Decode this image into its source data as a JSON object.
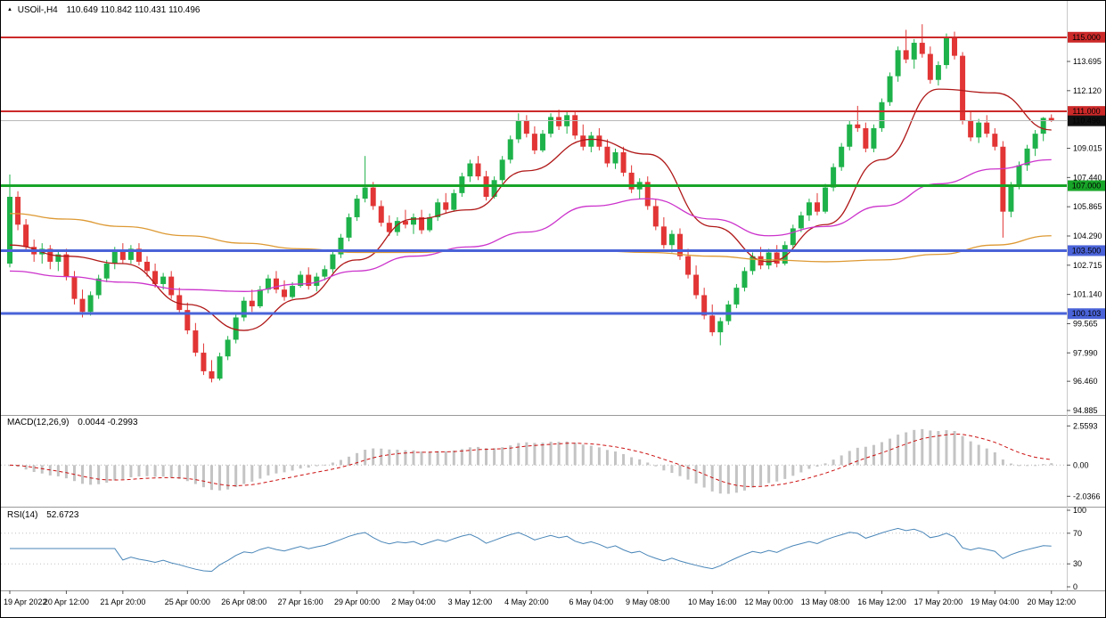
{
  "title_bar": {
    "marker": "▲",
    "symbol_timeframe": "USOil-,H4",
    "ohlc": "110.649 110.842 110.431 110.496"
  },
  "macd_panel": {
    "label": "MACD(12,26,9)",
    "values": "0.0044 -0.2993"
  },
  "rsi_panel": {
    "label": "RSI(14)",
    "value": "52.6723"
  },
  "chart_data": {
    "type": "candlestick",
    "symbol": "USOil-",
    "timeframe": "H4",
    "last_ohlc": {
      "open": 110.649,
      "high": 110.842,
      "low": 110.431,
      "close": 110.496
    },
    "price_axis_ticks": [
      113.695,
      112.12,
      109.015,
      107.44,
      105.865,
      104.29,
      102.715,
      101.14,
      99.565,
      97.99,
      96.46,
      94.885
    ],
    "hlines": [
      {
        "price": 115.0,
        "label": "115.000",
        "color": "#cc2929",
        "width": 2
      },
      {
        "price": 111.0,
        "label": "111.000",
        "color": "#cc2929",
        "width": 2
      },
      {
        "price": 107.0,
        "label": "107.000",
        "color": "#18a428",
        "width": 3
      },
      {
        "price": 103.5,
        "label": "103.500",
        "color": "#4a63d8",
        "width": 3
      },
      {
        "price": 100.103,
        "label": "100.103",
        "color": "#4a63d8",
        "width": 3
      }
    ],
    "current_price": {
      "price": 110.496,
      "label": "110.496",
      "badge_color": "#111111",
      "line_color": "#b8b8b8"
    },
    "time_labels": [
      {
        "text": "19 Apr 2022",
        "bar": 0
      },
      {
        "text": "20 Apr 12:00",
        "bar": 7
      },
      {
        "text": "21 Apr 20:00",
        "bar": 14
      },
      {
        "text": "25 Apr 00:00",
        "bar": 22
      },
      {
        "text": "26 Apr 08:00",
        "bar": 29
      },
      {
        "text": "27 Apr 16:00",
        "bar": 36
      },
      {
        "text": "29 Apr 00:00",
        "bar": 43
      },
      {
        "text": "2 May 04:00",
        "bar": 50
      },
      {
        "text": "3 May 12:00",
        "bar": 57
      },
      {
        "text": "4 May 20:00",
        "bar": 64
      },
      {
        "text": "6 May 04:00",
        "bar": 72
      },
      {
        "text": "9 May 08:00",
        "bar": 79
      },
      {
        "text": "10 May 16:00",
        "bar": 87
      },
      {
        "text": "12 May 00:00",
        "bar": 94
      },
      {
        "text": "13 May 08:00",
        "bar": 101
      },
      {
        "text": "16 May 12:00",
        "bar": 108
      },
      {
        "text": "17 May 20:00",
        "bar": 115
      },
      {
        "text": "19 May 04:00",
        "bar": 122
      },
      {
        "text": "20 May 12:00",
        "bar": 129
      }
    ],
    "candles": [
      [
        102.8,
        107.6,
        102.6,
        106.4
      ],
      [
        106.4,
        106.7,
        104.6,
        104.9
      ],
      [
        104.9,
        105.2,
        103.5,
        103.7
      ],
      [
        103.7,
        104.1,
        102.9,
        103.3
      ],
      [
        103.3,
        103.9,
        102.8,
        103.6
      ],
      [
        103.6,
        103.8,
        102.5,
        102.9
      ],
      [
        102.9,
        103.5,
        102.4,
        103.3
      ],
      [
        103.3,
        103.6,
        101.9,
        102.1
      ],
      [
        102.1,
        102.4,
        100.6,
        100.9
      ],
      [
        100.9,
        101.4,
        99.9,
        100.2
      ],
      [
        100.2,
        101.3,
        100.0,
        101.1
      ],
      [
        101.1,
        102.2,
        100.9,
        102.0
      ],
      [
        102.0,
        103.0,
        101.8,
        102.8
      ],
      [
        102.8,
        103.7,
        102.5,
        103.5
      ],
      [
        103.5,
        103.9,
        102.8,
        103.0
      ],
      [
        103.0,
        103.8,
        102.8,
        103.6
      ],
      [
        103.6,
        103.9,
        102.7,
        102.9
      ],
      [
        102.9,
        103.2,
        102.1,
        102.4
      ],
      [
        102.4,
        102.8,
        101.5,
        101.7
      ],
      [
        101.7,
        102.3,
        101.4,
        102.1
      ],
      [
        102.1,
        102.4,
        100.9,
        101.1
      ],
      [
        101.1,
        101.5,
        100.1,
        100.3
      ],
      [
        100.3,
        100.7,
        99.0,
        99.2
      ],
      [
        99.2,
        99.6,
        97.8,
        98.0
      ],
      [
        98.0,
        98.5,
        96.8,
        97.0
      ],
      [
        97.0,
        97.6,
        96.4,
        96.6
      ],
      [
        96.6,
        98.0,
        96.5,
        97.8
      ],
      [
        97.8,
        98.9,
        97.6,
        98.7
      ],
      [
        98.7,
        100.1,
        98.5,
        99.9
      ],
      [
        99.9,
        101.0,
        99.7,
        100.8
      ],
      [
        100.8,
        101.4,
        100.2,
        100.5
      ],
      [
        100.5,
        101.6,
        100.4,
        101.4
      ],
      [
        101.4,
        102.2,
        101.2,
        102.0
      ],
      [
        102.0,
        102.4,
        101.2,
        101.4
      ],
      [
        101.4,
        101.9,
        100.8,
        101.0
      ],
      [
        101.0,
        101.8,
        100.9,
        101.6
      ],
      [
        101.6,
        102.4,
        101.5,
        102.2
      ],
      [
        102.2,
        102.6,
        101.4,
        101.6
      ],
      [
        101.6,
        102.3,
        101.3,
        102.1
      ],
      [
        102.1,
        102.7,
        101.9,
        102.5
      ],
      [
        102.5,
        103.5,
        102.3,
        103.3
      ],
      [
        103.3,
        104.4,
        103.1,
        104.2
      ],
      [
        104.2,
        105.5,
        104.0,
        105.3
      ],
      [
        105.3,
        106.5,
        105.1,
        106.3
      ],
      [
        106.3,
        108.6,
        106.1,
        106.9
      ],
      [
        106.9,
        107.2,
        105.7,
        105.9
      ],
      [
        105.9,
        106.2,
        104.8,
        105.0
      ],
      [
        105.0,
        105.4,
        104.3,
        104.5
      ],
      [
        104.5,
        105.3,
        104.3,
        105.1
      ],
      [
        105.1,
        105.7,
        104.7,
        104.9
      ],
      [
        104.9,
        105.5,
        104.4,
        105.3
      ],
      [
        105.3,
        105.7,
        104.4,
        104.6
      ],
      [
        104.6,
        105.5,
        104.5,
        105.3
      ],
      [
        105.3,
        106.3,
        105.1,
        106.1
      ],
      [
        106.1,
        106.6,
        105.5,
        105.7
      ],
      [
        105.7,
        106.8,
        105.6,
        106.6
      ],
      [
        106.6,
        107.7,
        106.4,
        107.5
      ],
      [
        107.5,
        108.4,
        107.2,
        108.2
      ],
      [
        108.2,
        108.6,
        107.3,
        107.5
      ],
      [
        107.5,
        107.8,
        106.2,
        106.4
      ],
      [
        106.4,
        107.5,
        106.3,
        107.3
      ],
      [
        107.3,
        108.6,
        107.1,
        108.4
      ],
      [
        108.4,
        109.7,
        108.2,
        109.5
      ],
      [
        109.5,
        110.9,
        109.3,
        110.5
      ],
      [
        110.5,
        110.8,
        109.6,
        109.8
      ],
      [
        109.8,
        110.2,
        108.7,
        108.9
      ],
      [
        108.9,
        110.0,
        108.8,
        109.8
      ],
      [
        109.8,
        110.9,
        109.6,
        110.7
      ],
      [
        110.7,
        111.1,
        110.0,
        110.2
      ],
      [
        110.2,
        111.0,
        109.8,
        110.8
      ],
      [
        110.8,
        111.0,
        109.5,
        109.7
      ],
      [
        109.7,
        110.3,
        108.9,
        109.1
      ],
      [
        109.1,
        109.9,
        108.8,
        109.7
      ],
      [
        109.7,
        110.1,
        108.9,
        109.1
      ],
      [
        109.1,
        109.5,
        108.0,
        108.2
      ],
      [
        108.2,
        109.0,
        107.9,
        108.8
      ],
      [
        108.8,
        109.1,
        107.5,
        107.7
      ],
      [
        107.7,
        108.1,
        106.6,
        106.8
      ],
      [
        106.8,
        107.4,
        106.3,
        107.2
      ],
      [
        107.2,
        107.5,
        105.7,
        105.9
      ],
      [
        105.9,
        106.3,
        104.6,
        104.8
      ],
      [
        104.8,
        105.3,
        103.6,
        103.8
      ],
      [
        103.8,
        104.6,
        103.4,
        104.4
      ],
      [
        104.4,
        104.7,
        103.0,
        103.2
      ],
      [
        103.2,
        103.6,
        102.0,
        102.2
      ],
      [
        102.2,
        102.7,
        100.9,
        101.1
      ],
      [
        101.1,
        101.5,
        99.8,
        100.0
      ],
      [
        100.0,
        100.6,
        98.9,
        99.1
      ],
      [
        99.1,
        99.9,
        98.4,
        99.7
      ],
      [
        99.7,
        100.8,
        99.5,
        100.6
      ],
      [
        100.6,
        101.7,
        100.4,
        101.5
      ],
      [
        101.5,
        102.6,
        101.3,
        102.4
      ],
      [
        102.4,
        103.4,
        102.2,
        103.2
      ],
      [
        103.2,
        103.7,
        102.5,
        102.7
      ],
      [
        102.7,
        103.6,
        102.5,
        103.4
      ],
      [
        103.4,
        103.8,
        102.6,
        102.8
      ],
      [
        102.8,
        104.0,
        102.7,
        103.8
      ],
      [
        103.8,
        104.9,
        103.6,
        104.7
      ],
      [
        104.7,
        105.6,
        104.5,
        105.4
      ],
      [
        105.4,
        106.3,
        105.1,
        106.1
      ],
      [
        106.1,
        106.6,
        105.4,
        105.6
      ],
      [
        105.6,
        107.1,
        105.5,
        106.9
      ],
      [
        106.9,
        108.2,
        106.7,
        108.0
      ],
      [
        108.0,
        109.3,
        107.8,
        109.1
      ],
      [
        109.1,
        110.5,
        108.9,
        110.3
      ],
      [
        110.3,
        111.3,
        109.9,
        110.1
      ],
      [
        110.1,
        110.4,
        108.8,
        109.0
      ],
      [
        109.0,
        110.3,
        108.8,
        110.1
      ],
      [
        110.1,
        111.7,
        109.9,
        111.5
      ],
      [
        111.5,
        113.1,
        111.3,
        112.9
      ],
      [
        112.9,
        114.5,
        112.6,
        114.3
      ],
      [
        114.3,
        115.4,
        113.6,
        113.8
      ],
      [
        113.8,
        114.9,
        113.3,
        114.7
      ],
      [
        114.7,
        115.7,
        113.9,
        114.1
      ],
      [
        114.1,
        114.5,
        112.5,
        112.7
      ],
      [
        112.7,
        113.7,
        112.4,
        113.5
      ],
      [
        113.5,
        115.2,
        113.3,
        115.0
      ],
      [
        115.0,
        115.3,
        113.8,
        114.0
      ],
      [
        114.0,
        114.2,
        110.3,
        110.5
      ],
      [
        110.5,
        111.0,
        109.4,
        109.6
      ],
      [
        109.6,
        110.6,
        109.3,
        110.4
      ],
      [
        110.4,
        110.8,
        109.6,
        109.8
      ],
      [
        109.8,
        110.1,
        108.9,
        109.1
      ],
      [
        109.1,
        109.4,
        104.2,
        105.6
      ],
      [
        105.6,
        107.2,
        105.3,
        107.0
      ],
      [
        107.0,
        108.3,
        106.8,
        108.1
      ],
      [
        108.1,
        109.2,
        107.8,
        109.0
      ],
      [
        109.0,
        110.0,
        108.6,
        109.8
      ],
      [
        109.8,
        110.7,
        109.4,
        110.65
      ],
      [
        110.649,
        110.842,
        110.431,
        110.496
      ]
    ],
    "moving_averages": [
      {
        "name": "fast-ma-red",
        "color": "#b01818",
        "points": [
          [
            0,
            103.8
          ],
          [
            7,
            103.2
          ],
          [
            14,
            102.8
          ],
          [
            22,
            100.6
          ],
          [
            29,
            99.2
          ],
          [
            36,
            100.9
          ],
          [
            43,
            103.0
          ],
          [
            50,
            105.2
          ],
          [
            57,
            105.7
          ],
          [
            64,
            107.8
          ],
          [
            72,
            109.5
          ],
          [
            79,
            108.7
          ],
          [
            87,
            104.8
          ],
          [
            94,
            102.9
          ],
          [
            101,
            104.9
          ],
          [
            108,
            108.4
          ],
          [
            115,
            112.2
          ],
          [
            122,
            112.0
          ],
          [
            129,
            110.0
          ]
        ]
      },
      {
        "name": "mid-ma-magenta",
        "color": "#cc33cc",
        "points": [
          [
            0,
            102.4
          ],
          [
            7,
            102.1
          ],
          [
            14,
            101.8
          ],
          [
            22,
            101.4
          ],
          [
            29,
            101.3
          ],
          [
            36,
            101.7
          ],
          [
            43,
            102.4
          ],
          [
            50,
            103.2
          ],
          [
            57,
            103.7
          ],
          [
            64,
            104.5
          ],
          [
            72,
            105.9
          ],
          [
            79,
            106.3
          ],
          [
            87,
            105.2
          ],
          [
            94,
            104.3
          ],
          [
            101,
            104.8
          ],
          [
            108,
            105.9
          ],
          [
            115,
            107.1
          ],
          [
            122,
            107.9
          ],
          [
            129,
            108.4
          ]
        ]
      },
      {
        "name": "slow-ma-orange",
        "color": "#dd9933",
        "points": [
          [
            0,
            105.5
          ],
          [
            7,
            105.2
          ],
          [
            14,
            104.8
          ],
          [
            22,
            104.3
          ],
          [
            29,
            103.9
          ],
          [
            36,
            103.6
          ],
          [
            43,
            103.4
          ],
          [
            50,
            103.4
          ],
          [
            57,
            103.5
          ],
          [
            64,
            103.5
          ],
          [
            72,
            103.5
          ],
          [
            79,
            103.4
          ],
          [
            87,
            103.2
          ],
          [
            94,
            103.0
          ],
          [
            101,
            102.9
          ],
          [
            108,
            103.0
          ],
          [
            115,
            103.3
          ],
          [
            122,
            103.8
          ],
          [
            129,
            104.3
          ]
        ]
      }
    ],
    "macd": {
      "params": [
        12,
        26,
        9
      ],
      "main_value": 0.0044,
      "signal_value": -0.2993,
      "y_ticks": [
        {
          "v": 2.5593,
          "label": "2.5593"
        },
        {
          "v": 0,
          "label": "0.00"
        },
        {
          "v": -2.0366,
          "label": "-2.0366"
        }
      ],
      "histogram_color": "#c4c4c4",
      "signal_color": "#cc1111"
    },
    "rsi": {
      "period": 14,
      "value": 52.6723,
      "y_ticks": [
        {
          "v": 100,
          "label": "100"
        },
        {
          "v": 70,
          "label": "70"
        },
        {
          "v": 30,
          "label": "30"
        },
        {
          "v": 0,
          "label": "0"
        }
      ],
      "levels": [
        70,
        30
      ],
      "color": "#4a86b8"
    },
    "colors": {
      "up": "#1eb24a",
      "down": "#e23535",
      "background": "#ffffff",
      "axis_text": "#000000",
      "separator": "#9a9a9a"
    }
  }
}
